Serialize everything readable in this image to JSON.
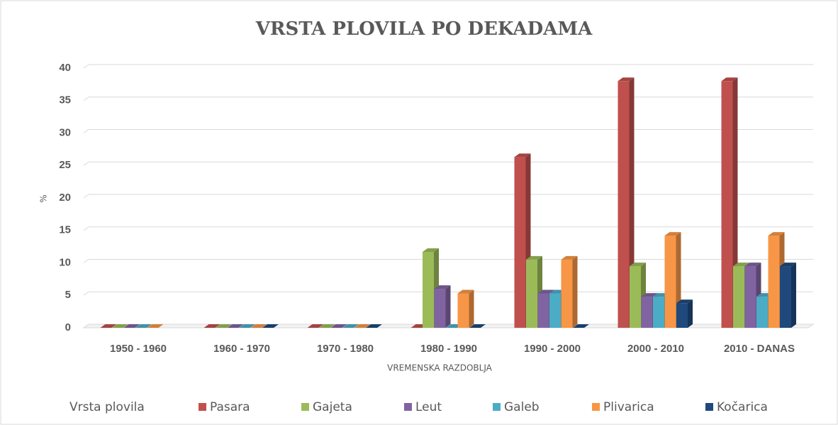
{
  "chart_data": {
    "type": "bar3d",
    "title": "VRSTA PLOVILA PO DEKADAMA",
    "x_label": "VREMENSKA RAZDOBLJA",
    "y_label": "%",
    "legend_title": "Vrsta plovila",
    "categories": [
      "1950 - 1960",
      "1960 - 1970",
      "1970 - 1980",
      "1980 - 1990",
      "1990 - 2000",
      "2000 - 2010",
      "2010 - DANAS"
    ],
    "series": [
      {
        "name": "Pasara",
        "color": "#c0504d",
        "values": [
          0,
          0,
          0,
          0,
          26.3,
          38,
          38
        ]
      },
      {
        "name": "Gajeta",
        "color": "#9bbb59",
        "values": [
          0,
          0,
          0,
          11.7,
          10.5,
          9.5,
          9.5
        ]
      },
      {
        "name": "Leut",
        "color": "#8064a2",
        "values": [
          0,
          0,
          0,
          6,
          5.3,
          4.8,
          9.5
        ]
      },
      {
        "name": "Galeb",
        "color": "#4bacc6",
        "values": [
          0,
          0,
          0,
          0,
          5.3,
          4.8,
          4.8
        ]
      },
      {
        "name": "Plivarica",
        "color": "#f79646",
        "values": [
          0,
          0,
          0,
          5.3,
          10.5,
          14.2,
          14.2
        ]
      },
      {
        "name": "Kočarica",
        "color": "#1f497d",
        "values": [
          null,
          0,
          0,
          0,
          0,
          3.8,
          9.5
        ]
      }
    ],
    "ylim": [
      0,
      40
    ],
    "yticks": [
      0,
      5,
      10,
      15,
      20,
      25,
      30,
      35,
      40
    ],
    "grid": true,
    "legend": "bottom"
  }
}
